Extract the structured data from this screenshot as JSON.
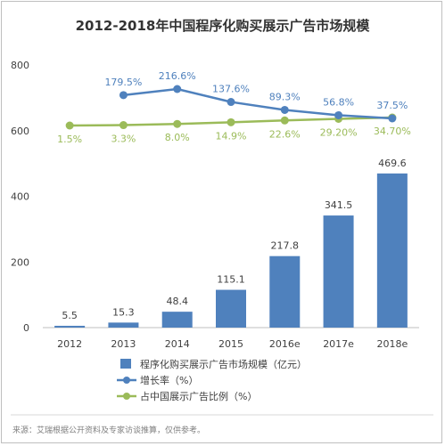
{
  "page": {
    "title": "2012-2018年中国程序化购买展示广告市场规模",
    "source": "来源：艾瑞根据公开资料及专家访谈推算，仅供参考。"
  },
  "chart_data": {
    "type": "bar",
    "title": "2012-2018年中国程序化购买展示广告市场规模",
    "categories": [
      "2012",
      "2013",
      "2014",
      "2015",
      "2016e",
      "2017e",
      "2018e"
    ],
    "ylim": [
      0,
      800
    ],
    "yticks": [
      0,
      200,
      400,
      600,
      800
    ],
    "grid": false,
    "legend_position": "bottom",
    "series": [
      {
        "name": "程序化购买展示广告市场规模（亿元）",
        "type": "bar",
        "color": "#4f81bd",
        "values": [
          5.5,
          15.3,
          48.4,
          115.1,
          217.8,
          341.5,
          469.6
        ],
        "labels": [
          "5.5",
          "15.3",
          "48.4",
          "115.1",
          "217.8",
          "341.5",
          "469.6"
        ]
      },
      {
        "name": "增长率（%）",
        "type": "line",
        "color": "#4f81bd",
        "values": [
          null,
          179.5,
          216.6,
          137.6,
          89.3,
          56.8,
          37.5
        ],
        "labels": [
          null,
          "179.5%",
          "216.6%",
          "137.6%",
          "89.3%",
          "56.8%",
          "37.5%"
        ]
      },
      {
        "name": "占中国展示广告比例（%）",
        "type": "line",
        "color": "#9bbb59",
        "values": [
          1.5,
          3.3,
          8.0,
          14.9,
          22.6,
          29.2,
          34.7
        ],
        "labels": [
          "1.5%",
          "3.3%",
          "8.0%",
          "14.9%",
          "22.6%",
          "29.20%",
          "34.70%"
        ]
      }
    ]
  }
}
